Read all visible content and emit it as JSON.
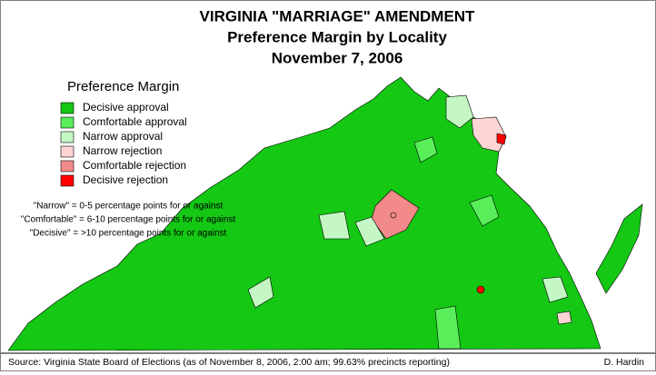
{
  "title": [
    "VIRGINIA \"MARRIAGE\" AMENDMENT",
    "Preference Margin by Locality",
    "November 7, 2006"
  ],
  "legend": {
    "title": "Preference Margin",
    "items": [
      {
        "label": "Decisive approval",
        "color": "#14c814"
      },
      {
        "label": "Comfortable approval",
        "color": "#5aee5a"
      },
      {
        "label": "Narrow approval",
        "color": "#c4f7c4"
      },
      {
        "label": "Narrow rejection",
        "color": "#ffd4d4"
      },
      {
        "label": "Comfortable rejection",
        "color": "#f28a8a"
      },
      {
        "label": "Decisive rejection",
        "color": "#ff0000"
      }
    ]
  },
  "notes": [
    "\"Narrow\" = 0-5 percentage points for or against",
    "\"Comfortable\" = 6-10 percentage points for or against",
    "\"Decisive\" = >10 percentage points for or against"
  ],
  "source": "Source: Virginia State Board of Elections (as of November 8, 2006, 2:00 am; 99.63% precincts reporting)",
  "author": "D. Hardin"
}
